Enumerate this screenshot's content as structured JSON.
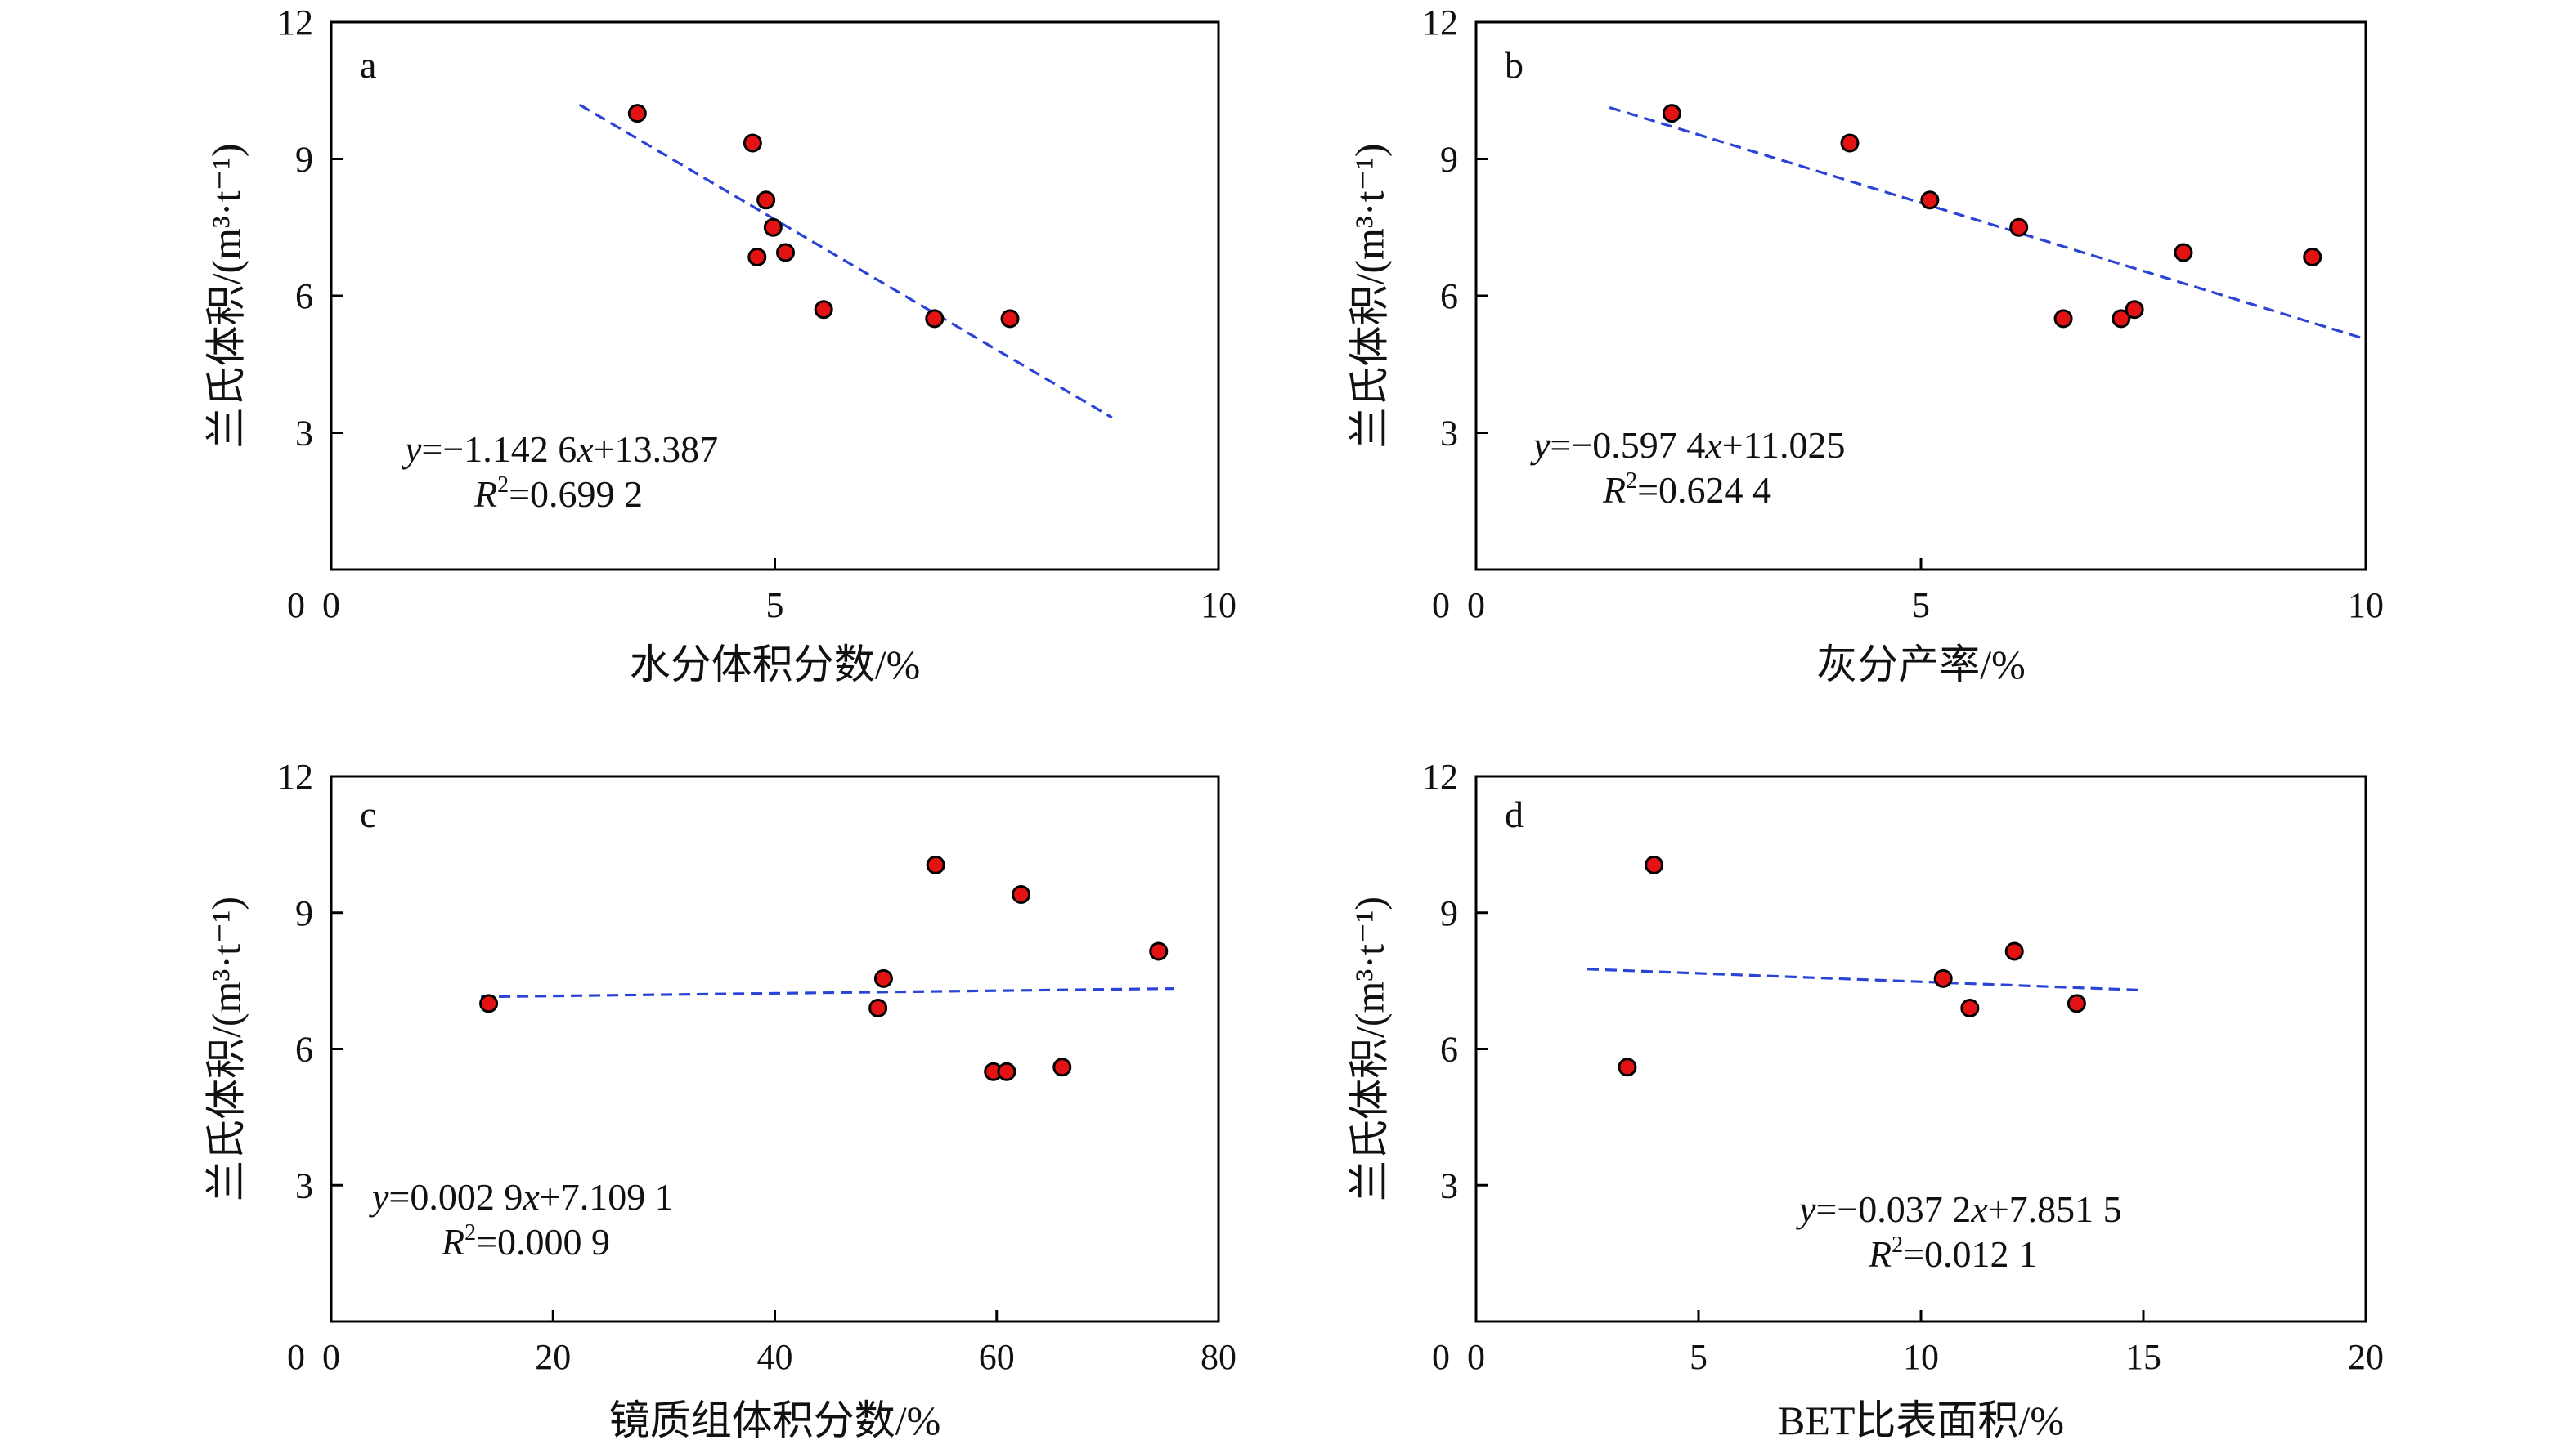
{
  "chart_data": [
    {
      "type": "scatter",
      "panel": "a",
      "xlabel": "水分体积分数/%",
      "ylabel": "兰氏体积/(m³·t⁻¹)",
      "xlim": [
        0,
        10
      ],
      "ylim": [
        0,
        12
      ],
      "x_ticks": [
        "0",
        "5",
        "10"
      ],
      "y_ticks": [
        "3",
        "6",
        "9",
        "12"
      ],
      "points": [
        {
          "x": 3.45,
          "y": 10.0
        },
        {
          "x": 4.75,
          "y": 9.35
        },
        {
          "x": 4.9,
          "y": 8.1
        },
        {
          "x": 4.98,
          "y": 7.5
        },
        {
          "x": 5.12,
          "y": 6.95
        },
        {
          "x": 4.8,
          "y": 6.85
        },
        {
          "x": 5.55,
          "y": 5.7
        },
        {
          "x": 6.8,
          "y": 5.5
        },
        {
          "x": 7.65,
          "y": 5.5
        }
      ],
      "trendline": {
        "slope": -1.1426,
        "intercept": 13.387,
        "x_range": [
          2.8,
          8.8
        ]
      },
      "equation": {
        "y_var": "y",
        "eq_text": "=−1.142 6",
        "x_var": "x",
        "eq_tail": "+13.387",
        "r_var": "R",
        "r_sup": "2",
        "r_text": "=0.699 2"
      }
    },
    {
      "type": "scatter",
      "panel": "b",
      "xlabel": "灰分产率/%",
      "ylabel": "兰氏体积/(m³·t⁻¹)",
      "xlim": [
        0,
        10
      ],
      "ylim": [
        0,
        12
      ],
      "x_ticks": [
        "0",
        "5",
        "10"
      ],
      "y_ticks": [
        "3",
        "6",
        "9",
        "12"
      ],
      "points": [
        {
          "x": 2.2,
          "y": 10.0
        },
        {
          "x": 4.2,
          "y": 9.35
        },
        {
          "x": 5.1,
          "y": 8.1
        },
        {
          "x": 6.1,
          "y": 7.5
        },
        {
          "x": 6.6,
          "y": 5.5
        },
        {
          "x": 7.25,
          "y": 5.5
        },
        {
          "x": 7.4,
          "y": 5.7
        },
        {
          "x": 7.95,
          "y": 6.95
        },
        {
          "x": 9.4,
          "y": 6.85
        }
      ],
      "trendline": {
        "slope": -0.5974,
        "intercept": 11.025,
        "x_range": [
          1.5,
          10.0
        ]
      },
      "equation": {
        "y_var": "y",
        "eq_text": "=−0.597 4",
        "x_var": "x",
        "eq_tail": "+11.025",
        "r_var": "R",
        "r_sup": "2",
        "r_text": "=0.624 4"
      }
    },
    {
      "type": "scatter",
      "panel": "c",
      "xlabel": "镜质组体积分数/%",
      "ylabel": "兰氏体积/(m³·t⁻¹)",
      "xlim": [
        0,
        80
      ],
      "ylim": [
        0,
        12
      ],
      "x_ticks": [
        "0",
        "20",
        "40",
        "60",
        "80"
      ],
      "y_ticks": [
        "3",
        "6",
        "9",
        "12"
      ],
      "points": [
        {
          "x": 14.2,
          "y": 7.0
        },
        {
          "x": 49.3,
          "y": 6.9
        },
        {
          "x": 49.8,
          "y": 7.55
        },
        {
          "x": 54.5,
          "y": 10.05
        },
        {
          "x": 59.7,
          "y": 5.5
        },
        {
          "x": 60.9,
          "y": 5.5
        },
        {
          "x": 62.2,
          "y": 9.4
        },
        {
          "x": 65.9,
          "y": 5.6
        },
        {
          "x": 74.6,
          "y": 8.15
        }
      ],
      "trendline": {
        "slope": 0.0029,
        "intercept": 7.1091,
        "x_range": [
          13.5,
          76.0
        ]
      },
      "equation": {
        "y_var": "y",
        "eq_text": "=0.002 9",
        "x_var": "x",
        "eq_tail": "+7.109 1",
        "r_var": "R",
        "r_sup": "2",
        "r_text": "=0.000 9"
      }
    },
    {
      "type": "scatter",
      "panel": "d",
      "xlabel": "BET比表面积/%",
      "ylabel": "兰氏体积/(m³·t⁻¹)",
      "xlim": [
        0,
        20
      ],
      "ylim": [
        0,
        12
      ],
      "x_ticks": [
        "0",
        "5",
        "10",
        "15",
        "20"
      ],
      "y_ticks": [
        "3",
        "6",
        "9",
        "12"
      ],
      "points": [
        {
          "x": 3.4,
          "y": 5.6
        },
        {
          "x": 4.0,
          "y": 10.05
        },
        {
          "x": 10.5,
          "y": 7.55
        },
        {
          "x": 11.1,
          "y": 6.9
        },
        {
          "x": 12.1,
          "y": 8.15
        },
        {
          "x": 13.5,
          "y": 7.0
        }
      ],
      "trendline": {
        "slope": -0.0372,
        "intercept": 7.8515,
        "x_range": [
          2.5,
          15.0
        ]
      },
      "equation": {
        "y_var": "y",
        "eq_text": "=−0.037 2",
        "x_var": "x",
        "eq_tail": "+7.851 5",
        "r_var": "R",
        "r_sup": "2",
        "r_text": "=0.012 1"
      }
    }
  ]
}
